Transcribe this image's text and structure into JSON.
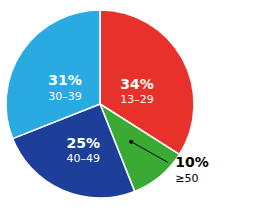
{
  "chart_data": {
    "type": "pie",
    "categories": [
      "13–29",
      "≥50",
      "40–49",
      "30–39"
    ],
    "values": [
      34,
      10,
      25,
      31
    ],
    "value_labels": [
      "34%",
      "10%",
      "25%",
      "31%"
    ],
    "colors": [
      "#e8312a",
      "#3aaa35",
      "#1e3f99",
      "#29abe2"
    ],
    "data_labels": true
  }
}
